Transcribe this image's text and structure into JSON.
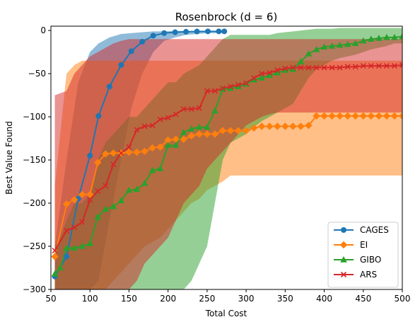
{
  "chart_data": {
    "type": "line",
    "title": "Rosenbrock (d = 6)",
    "xlabel": "Total Cost",
    "ylabel": "Best Value Found",
    "xlim": [
      50,
      500
    ],
    "ylim": [
      -300,
      5
    ],
    "xticks": [
      50,
      100,
      150,
      200,
      250,
      300,
      350,
      400,
      450,
      500
    ],
    "yticks": [
      0,
      -50,
      -100,
      -150,
      -200,
      -250,
      -300
    ],
    "grid": false,
    "legend_position": "lower right",
    "series": [
      {
        "name": "CAGES",
        "color": "#1f77b4",
        "marker": "circle",
        "x": [
          55,
          70,
          85,
          100,
          111,
          125,
          140,
          153,
          167,
          181,
          195,
          209,
          223,
          237,
          251,
          265,
          272
        ],
        "y": [
          -285,
          -262,
          -195,
          -145,
          -99,
          -65,
          -40,
          -24,
          -13,
          -6,
          -3,
          -2,
          -1.5,
          -1.2,
          -1,
          -1,
          -1
        ],
        "band_upper": [
          -250,
          -150,
          -60,
          -25,
          -15,
          -8,
          -4,
          -3,
          -2,
          -1,
          -1,
          -0.5,
          -0.5,
          -0.5,
          -0.5,
          -0.5,
          -0.5
        ],
        "band_lower": [
          -300,
          -300,
          -300,
          -300,
          -290,
          -220,
          -150,
          -90,
          -50,
          -25,
          -12,
          -8,
          -5,
          -4,
          -3,
          -3,
          -3
        ]
      },
      {
        "name": "EI",
        "color": "#ff7f0e",
        "marker": "diamond",
        "x": [
          55,
          70,
          80,
          90,
          100,
          110,
          120,
          130,
          140,
          150,
          160,
          170,
          180,
          190,
          200,
          210,
          220,
          230,
          240,
          250,
          260,
          270,
          280,
          290,
          300,
          310,
          320,
          330,
          340,
          350,
          360,
          370,
          380,
          390,
          400,
          410,
          420,
          430,
          440,
          450,
          460,
          470,
          480,
          490,
          500
        ],
        "y": [
          -262,
          -201,
          -196,
          -190,
          -190,
          -153,
          -143,
          -142,
          -142,
          -141,
          -141,
          -140,
          -136,
          -135,
          -127,
          -126,
          -126,
          -122,
          -120,
          -120,
          -120,
          -116,
          -116,
          -116,
          -116,
          -113,
          -111,
          -111,
          -111,
          -111,
          -111,
          -111,
          -110,
          -99,
          -99,
          -99,
          -99,
          -99,
          -99,
          -99,
          -99,
          -99,
          -99,
          -99,
          -99
        ],
        "band_upper": [
          -180,
          -50,
          -40,
          -35,
          -35,
          -35,
          -35,
          -35,
          -35,
          -35,
          -35,
          -35,
          -35,
          -35,
          -35,
          -35,
          -35,
          -35,
          -35,
          -35,
          -35,
          -35,
          -35,
          -35,
          -35,
          -35,
          -35,
          -35,
          -35,
          -35,
          -35,
          -35,
          -35,
          -35,
          -35,
          -35,
          -35,
          -35,
          -35,
          -35,
          -35,
          -35,
          -35,
          -35,
          -35
        ],
        "band_lower": [
          -300,
          -300,
          -300,
          -300,
          -300,
          -300,
          -300,
          -290,
          -280,
          -270,
          -260,
          -250,
          -245,
          -240,
          -230,
          -220,
          -210,
          -200,
          -195,
          -185,
          -180,
          -175,
          -168,
          -168,
          -168,
          -168,
          -168,
          -168,
          -168,
          -168,
          -168,
          -168,
          -168,
          -168,
          -168,
          -168,
          -168,
          -168,
          -168,
          -168,
          -168,
          -168,
          -168,
          -168,
          -168
        ]
      },
      {
        "name": "GIBO",
        "color": "#2ca02c",
        "marker": "triangle",
        "x": [
          55,
          62,
          70,
          80,
          90,
          100,
          110,
          120,
          130,
          140,
          150,
          160,
          170,
          180,
          190,
          200,
          210,
          220,
          230,
          240,
          250,
          260,
          270,
          280,
          290,
          300,
          310,
          320,
          330,
          340,
          350,
          360,
          370,
          380,
          390,
          400,
          410,
          420,
          430,
          440,
          450,
          460,
          470,
          480,
          490,
          500
        ],
        "y": [
          -282,
          -275,
          -252,
          -252,
          -250,
          -247,
          -216,
          -207,
          -204,
          -197,
          -185,
          -184,
          -177,
          -162,
          -160,
          -133,
          -133,
          -118,
          -114,
          -112,
          -112,
          -93,
          -68,
          -67,
          -65,
          -62,
          -57,
          -55,
          -52,
          -49,
          -46,
          -45,
          -36,
          -27,
          -22,
          -19,
          -18,
          -17,
          -16,
          -15,
          -12,
          -10,
          -9,
          -8,
          -8,
          -7
        ],
        "band_upper": [
          -250,
          -240,
          -220,
          -200,
          -200,
          -190,
          -150,
          -130,
          -120,
          -110,
          -100,
          -100,
          -90,
          -80,
          -70,
          -60,
          -60,
          -50,
          -45,
          -40,
          -30,
          -20,
          -10,
          -5,
          -5,
          -5,
          -5,
          -5,
          -5,
          -3,
          -2,
          -1,
          0,
          1,
          2,
          2,
          2,
          3,
          3,
          3,
          3,
          3,
          3,
          3,
          3,
          3
        ],
        "band_lower": [
          -300,
          -300,
          -300,
          -300,
          -300,
          -300,
          -300,
          -300,
          -300,
          -300,
          -300,
          -300,
          -300,
          -300,
          -300,
          -300,
          -300,
          -300,
          -290,
          -270,
          -250,
          -200,
          -150,
          -130,
          -125,
          -120,
          -112,
          -105,
          -100,
          -95,
          -90,
          -85,
          -70,
          -55,
          -45,
          -40,
          -35,
          -32,
          -30,
          -28,
          -25,
          -22,
          -20,
          -18,
          -15,
          -15
        ]
      },
      {
        "name": "ARS",
        "color": "#d62728",
        "marker": "x",
        "x": [
          55,
          70,
          80,
          90,
          100,
          110,
          120,
          130,
          140,
          150,
          160,
          170,
          180,
          190,
          200,
          210,
          220,
          230,
          240,
          250,
          260,
          270,
          280,
          290,
          300,
          310,
          320,
          330,
          340,
          350,
          360,
          370,
          380,
          390,
          400,
          410,
          420,
          430,
          440,
          450,
          460,
          470,
          480,
          490,
          500
        ],
        "y": [
          -255,
          -232,
          -228,
          -222,
          -196,
          -186,
          -180,
          -155,
          -142,
          -135,
          -115,
          -111,
          -110,
          -103,
          -101,
          -97,
          -91,
          -91,
          -90,
          -70,
          -70,
          -67,
          -65,
          -63,
          -61,
          -55,
          -50,
          -49,
          -46,
          -44,
          -43,
          -43,
          -43,
          -43,
          -43,
          -43,
          -43,
          -42,
          -42,
          -41,
          -41,
          -41,
          -41,
          -41,
          -40
        ],
        "band_upper": [
          -75,
          -70,
          -50,
          -40,
          -30,
          -25,
          -20,
          -15,
          -12,
          -10,
          -10,
          -10,
          -10,
          -10,
          -10,
          -10,
          -10,
          -10,
          -10,
          -10,
          -10,
          -10,
          -10,
          -10,
          -10,
          -10,
          -10,
          -10,
          -10,
          -10,
          -10,
          -10,
          -10,
          -10,
          -10,
          -10,
          -10,
          -10,
          -10,
          -10,
          -10,
          -10,
          -10,
          -10,
          -10
        ],
        "band_lower": [
          -300,
          -300,
          -300,
          -300,
          -300,
          -300,
          -300,
          -300,
          -300,
          -300,
          -290,
          -270,
          -260,
          -250,
          -240,
          -220,
          -200,
          -190,
          -180,
          -160,
          -150,
          -140,
          -130,
          -120,
          -110,
          -105,
          -100,
          -97,
          -95,
          -95,
          -95,
          -95,
          -95,
          -95,
          -95,
          -95,
          -95,
          -95,
          -95,
          -95,
          -95,
          -95,
          -95,
          -95,
          -95
        ]
      }
    ]
  }
}
